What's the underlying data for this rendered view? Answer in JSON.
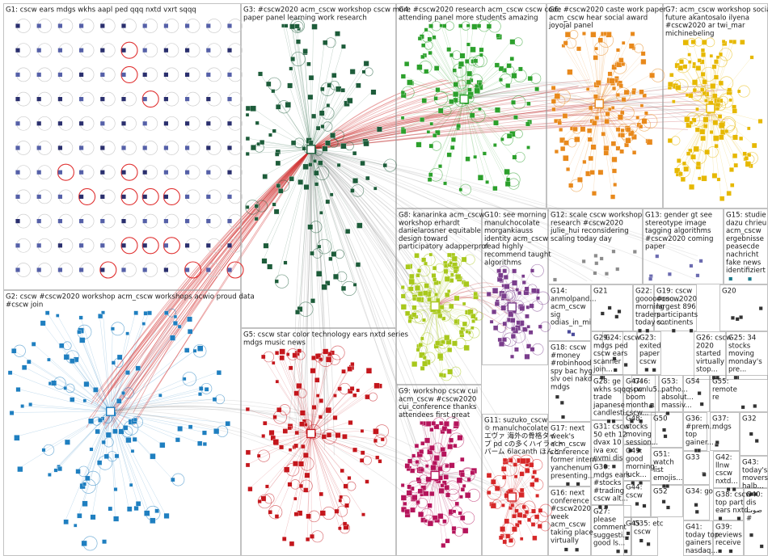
{
  "groups": [
    {
      "id": "G1",
      "lines": [
        "G1: cscw ears mdgs wkhs aapl ped qqq nxtd vxrt sqqq"
      ],
      "color": "#1f2a66",
      "kind": "grid"
    },
    {
      "id": "G2",
      "lines": [
        "G2: cscw #cscw2020 workshop acm_cscw workshops acwio proud data",
        "#cscw join"
      ],
      "color": "#1f7fc0",
      "kind": "cluster"
    },
    {
      "id": "G3",
      "lines": [
        "G3: #cscw2020 acm_cscw workshop cscw more",
        "paper panel learning work research"
      ],
      "color": "#1d5c3a",
      "kind": "cluster"
    },
    {
      "id": "G4",
      "lines": [
        "G4: #cscw2020 research acm_cscw cscw code",
        "attending panel more students amazing"
      ],
      "color": "#2ca02c",
      "kind": "cluster"
    },
    {
      "id": "G5",
      "lines": [
        "G5: cscw star color technology ears nxtd series",
        "mdgs music news"
      ],
      "color": "#c4161c",
      "kind": "cluster"
    },
    {
      "id": "G6",
      "lines": [
        "G6: #cscw2020 caste work paper",
        "acm_cscw hear social award",
        "joyojal panel"
      ],
      "color": "#e8891c",
      "kind": "cluster"
    },
    {
      "id": "G7",
      "lines": [
        "G7: acm_cscw workshop social",
        "future akantosalo ilyena",
        "#cscw2020 ar twi_mar",
        "michinebeling"
      ],
      "color": "#e6b800",
      "kind": "cluster"
    },
    {
      "id": "G8",
      "lines": [
        "G8: kanarinka acm_cscw",
        "workshop erhardt",
        "danielarosner equitable",
        "design toward",
        "participatory adapperprof"
      ],
      "color": "#a8c81c",
      "kind": "cluster"
    },
    {
      "id": "G9",
      "lines": [
        "G9: workshop cscw cui",
        "acm_cscw #cscw2020",
        "cui_conference thanks",
        "attendees first great"
      ],
      "color": "#b5145b",
      "kind": "cluster"
    },
    {
      "id": "G10",
      "lines": [
        "G10: see morning",
        "manulchocolate",
        "morgankiauss",
        "identity acm_cscw",
        "read highly",
        "recommend taught",
        "algorithms"
      ],
      "color": "#7a3d8c",
      "kind": "cluster"
    },
    {
      "id": "G11",
      "lines": [
        "G11: suzuko_cscw",
        "🌣 manulchocolate",
        "エヴァ 海外の骨格タイ",
        "プ pd cの多くハイライト",
        "パーム 6lacanth ほんと"
      ],
      "color": "#d62728",
      "kind": "cluster"
    },
    {
      "id": "G12",
      "lines": [
        "G12: scale cscw workshop",
        "research #cscw2020",
        "julie_hui reconsidering",
        "scaling today day"
      ],
      "color": "#8c8c8c",
      "kind": "small"
    },
    {
      "id": "G13",
      "lines": [
        "G13: gender gt see",
        "stereotype image",
        "tagging algorithms",
        "#cscw2020 coming",
        "paper"
      ],
      "color": "#6b6bb0",
      "kind": "small"
    },
    {
      "id": "G14",
      "lines": [
        "G14:",
        "anmolpand...",
        "acm_cscw",
        "sig",
        "odias_in_mi"
      ],
      "color": "#4a4a9a",
      "kind": "small"
    },
    {
      "id": "G15",
      "lines": [
        "G15: studie",
        "dazu chrieu",
        "acm_cscw",
        "ergebnisse",
        "peasecde",
        "nachricht",
        "fake news",
        "identifiziert"
      ],
      "color": "#1b7a8c",
      "kind": "small"
    },
    {
      "id": "G16",
      "lines": [
        "G16: next",
        "conference",
        "#cscw2020",
        "week",
        "acm_cscw",
        "taking place",
        "virtually"
      ],
      "color": "#333",
      "kind": "small"
    },
    {
      "id": "G17",
      "lines": [
        "G17: next",
        "week's",
        "acm_cscw",
        "conference",
        "former intern",
        "yanchenum",
        "presenting..."
      ],
      "color": "#333",
      "kind": "small"
    },
    {
      "id": "G18",
      "lines": [
        "G18: cscw",
        "#money",
        "#robinhood",
        "spy bac hyg",
        "slv oei nakd",
        "mdgs"
      ],
      "color": "#333",
      "kind": "small"
    },
    {
      "id": "G19",
      "lines": [
        "G19: cscw",
        "#cscw2020",
        "largest 896",
        "participants",
        "continents"
      ],
      "color": "#333",
      "kind": "small"
    },
    {
      "id": "G20",
      "lines": [
        "G20"
      ],
      "color": "#333",
      "kind": "small"
    },
    {
      "id": "G21",
      "lines": [
        "G21"
      ],
      "color": "#333",
      "kind": "small"
    },
    {
      "id": "G22",
      "lines": [
        "G22:",
        "goooooooo...",
        "morning",
        "traders",
        "today s..."
      ],
      "color": "#333",
      "kind": "small"
    },
    {
      "id": "G23",
      "lines": [
        "G23:",
        "exited",
        "paper",
        "cscw"
      ],
      "color": "#333",
      "kind": "small"
    },
    {
      "id": "G24",
      "lines": [
        "G24: cscw"
      ],
      "color": "#333",
      "kind": "small"
    },
    {
      "id": "G25",
      "lines": [
        "G25: 34",
        "stocks",
        "moving",
        "monday's",
        "pre..."
      ],
      "color": "#333",
      "kind": "small"
    },
    {
      "id": "G26",
      "lines": [
        "G26: cscw",
        "2020",
        "started",
        "virtually",
        "stop..."
      ],
      "color": "#333",
      "kind": "small"
    },
    {
      "id": "G27",
      "lines": [
        "G27:",
        "please",
        "comment",
        "suggesti...",
        "good ls..."
      ],
      "color": "#333",
      "kind": "small"
    },
    {
      "id": "G28",
      "lines": [
        "G28: ge",
        "wkhs sqqq",
        "trade",
        "japanese",
        "candlesti..."
      ],
      "color": "#333",
      "kind": "small"
    },
    {
      "id": "G29",
      "lines": [
        "G29:",
        "mdgs ped",
        "cscw ears",
        "scanner",
        "join..."
      ],
      "color": "#333",
      "kind": "small"
    },
    {
      "id": "G30",
      "lines": [
        "G30:",
        "mdgs ears",
        "#stocks",
        "#trading",
        "cscw alt..."
      ],
      "color": "#333",
      "kind": "small"
    },
    {
      "id": "G31",
      "lines": [
        "G31: cscw",
        "50 eth 12",
        "dvax 10",
        "iva exc",
        "nvmi dis"
      ],
      "color": "#333",
      "kind": "small"
    },
    {
      "id": "G32",
      "lines": [
        "G32"
      ],
      "color": "#333",
      "kind": "small"
    },
    {
      "id": "G33",
      "lines": [
        "G33"
      ],
      "color": "#333",
      "kind": "small"
    },
    {
      "id": "G34",
      "lines": [
        "G34: go"
      ],
      "color": "#333",
      "kind": "small"
    },
    {
      "id": "G35",
      "lines": [
        "G35: etc",
        "cscw"
      ],
      "color": "#333",
      "kind": "small"
    },
    {
      "id": "G36",
      "lines": [
        "G36:",
        "#prem...",
        "top",
        "gainer..."
      ],
      "color": "#333",
      "kind": "small"
    },
    {
      "id": "G37",
      "lines": [
        "G37:",
        "mdgs"
      ],
      "color": "#333",
      "kind": "small"
    },
    {
      "id": "G38",
      "lines": [
        "G38: cscw",
        "top part",
        "ears nxtd..."
      ],
      "color": "#333",
      "kind": "small"
    },
    {
      "id": "G39",
      "lines": [
        "G39:",
        "reviews",
        "receive"
      ],
      "color": "#333",
      "kind": "small"
    },
    {
      "id": "G40",
      "lines": [
        "G40:",
        "dis",
        "صوت",
        "#"
      ],
      "color": "#333",
      "kind": "small"
    },
    {
      "id": "G41",
      "lines": [
        "G41:",
        "today top",
        "gainers",
        "nasdaq..."
      ],
      "color": "#333",
      "kind": "small"
    },
    {
      "id": "G42",
      "lines": [
        "G42:",
        "llnw",
        "cscw",
        "nxtd..."
      ],
      "color": "#333",
      "kind": "small"
    },
    {
      "id": "G43",
      "lines": [
        "G43:",
        "today's",
        "movers",
        "halb..."
      ],
      "color": "#333",
      "kind": "small"
    },
    {
      "id": "G44",
      "lines": [
        "G44:",
        "cscw"
      ],
      "color": "#333",
      "kind": "small"
    },
    {
      "id": "G45",
      "lines": [
        "G45"
      ],
      "color": "#333",
      "kind": "small"
    },
    {
      "id": "G46",
      "lines": [
        "G46:",
        "pcnlu5..."
      ],
      "color": "#333",
      "kind": "small"
    },
    {
      "id": "G47",
      "lines": [
        "G47:",
        "cscw",
        "boom",
        "month...",
        "cscw..."
      ],
      "color": "#333",
      "kind": "small"
    },
    {
      "id": "G48",
      "lines": [
        "G48:",
        "stocks",
        "moving",
        "session..."
      ],
      "color": "#333",
      "kind": "small"
    },
    {
      "id": "G49",
      "lines": [
        "G49:",
        "good",
        "morning",
        "luck..."
      ],
      "color": "#333",
      "kind": "small"
    },
    {
      "id": "G50",
      "lines": [
        "G50"
      ],
      "color": "#333",
      "kind": "small"
    },
    {
      "id": "G51",
      "lines": [
        "G51:",
        "watch",
        "list",
        "emojis..."
      ],
      "color": "#333",
      "kind": "small"
    },
    {
      "id": "G52",
      "lines": [
        "G52"
      ],
      "color": "#333",
      "kind": "small"
    },
    {
      "id": "G53",
      "lines": [
        "G53:",
        "patho...",
        "absolut...",
        "massiv..."
      ],
      "color": "#333",
      "kind": "small"
    },
    {
      "id": "G54",
      "lines": [
        "G54"
      ],
      "color": "#333",
      "kind": "small"
    },
    {
      "id": "G55",
      "lines": [
        "G55:",
        "remote",
        "re"
      ],
      "color": "#333",
      "kind": "small"
    }
  ]
}
